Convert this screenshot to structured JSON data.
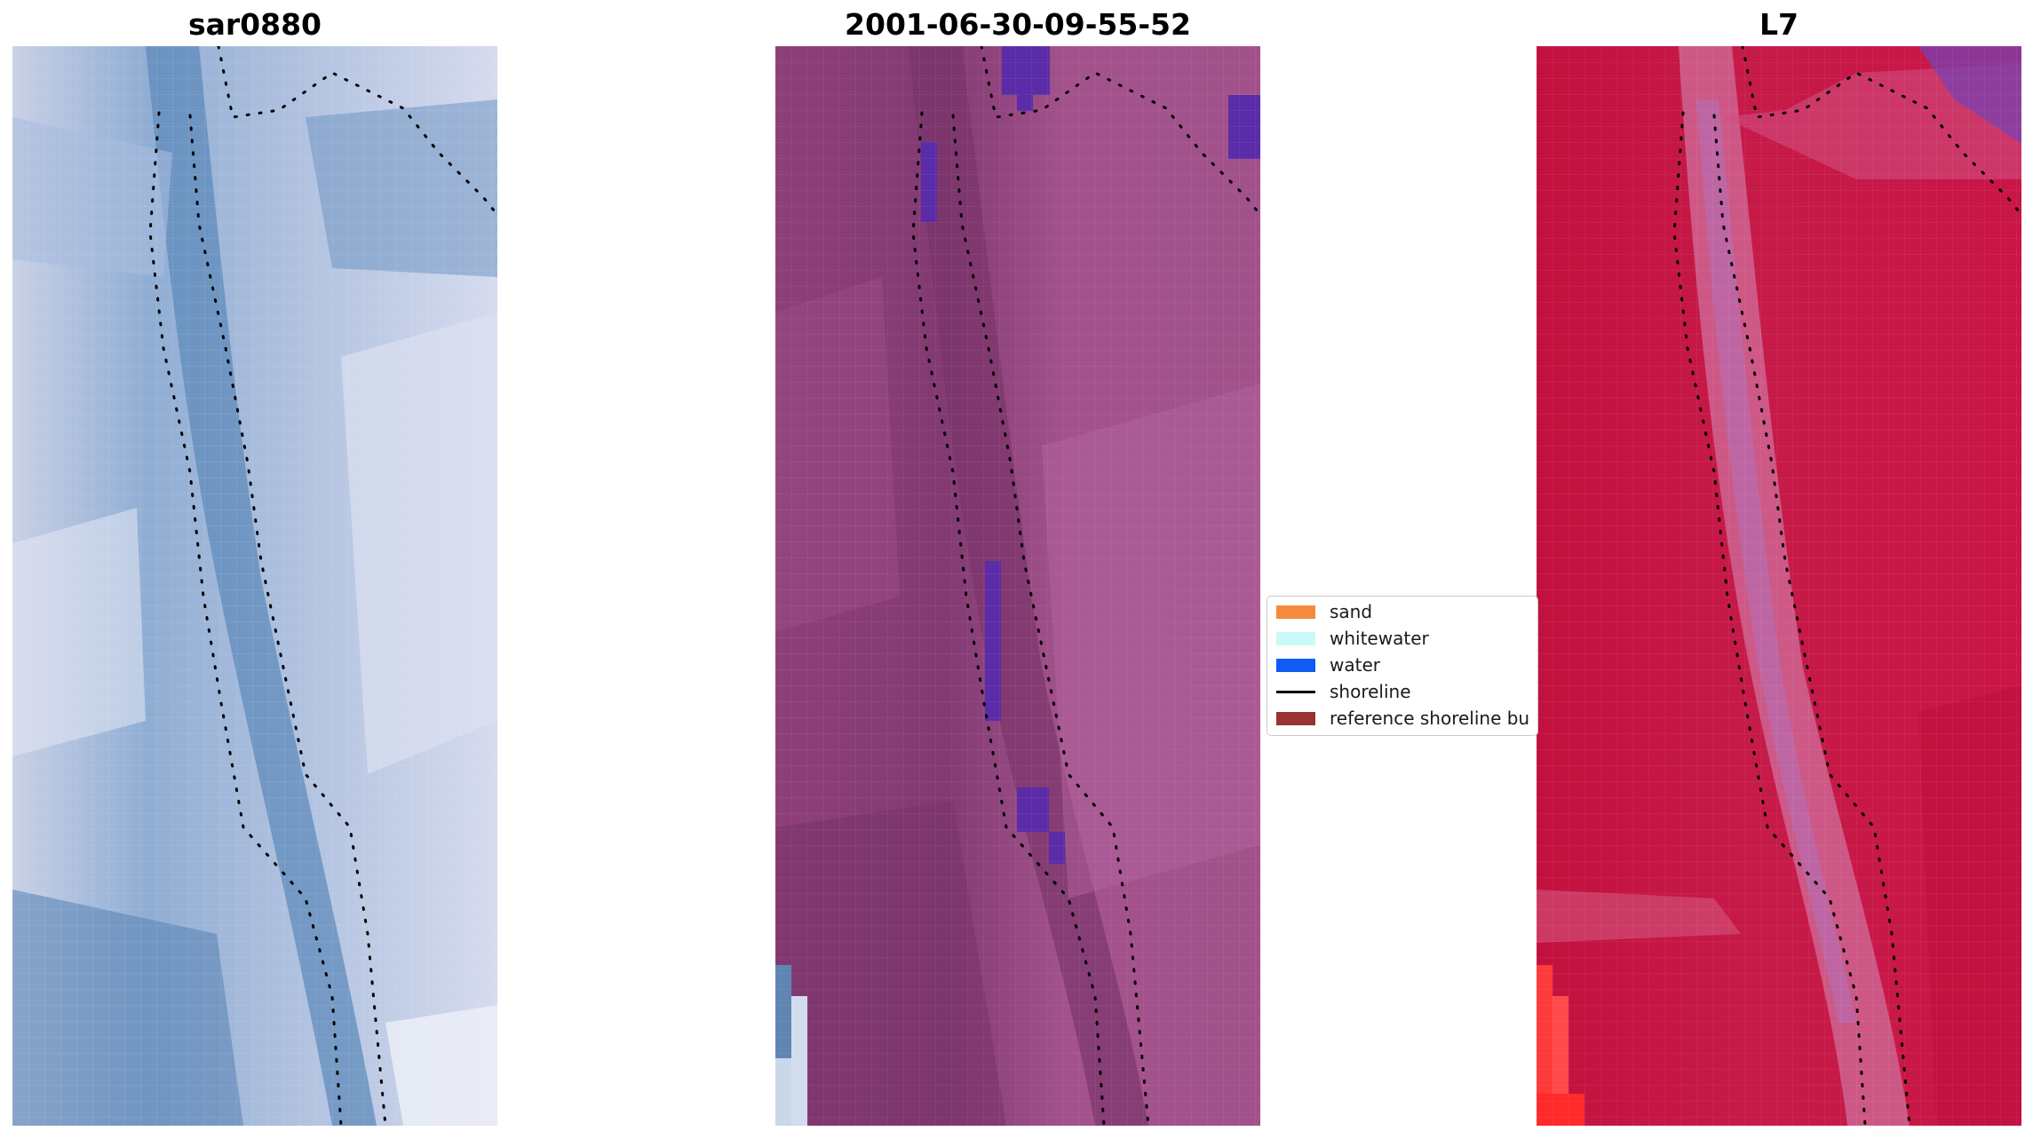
{
  "panels": [
    {
      "id": "left",
      "title": "sar0880",
      "colors": {
        "background": "#7fa2c8",
        "light": "#d2d8ea",
        "channel": "#5b86b5"
      }
    },
    {
      "id": "middle",
      "title": "2001-06-30-09-55-52",
      "colors": {
        "background": "#98447e",
        "light": "#b1609a",
        "water": "#5b2ca8"
      }
    },
    {
      "id": "right",
      "title": "L7",
      "colors": {
        "background": "#c81745",
        "light": "#cf6490",
        "sand": "#ff3a3a"
      }
    }
  ],
  "legend": {
    "items": [
      {
        "label": "sand",
        "kind": "patch",
        "color": "#f58a3c"
      },
      {
        "label": "whitewater",
        "kind": "patch",
        "color": "#c8fafa"
      },
      {
        "label": "water",
        "kind": "patch",
        "color": "#0e5cf5"
      },
      {
        "label": "shoreline",
        "kind": "line",
        "color": "#000000"
      },
      {
        "label": "reference shoreline bu",
        "kind": "patch",
        "color": "#9a3234"
      }
    ]
  }
}
